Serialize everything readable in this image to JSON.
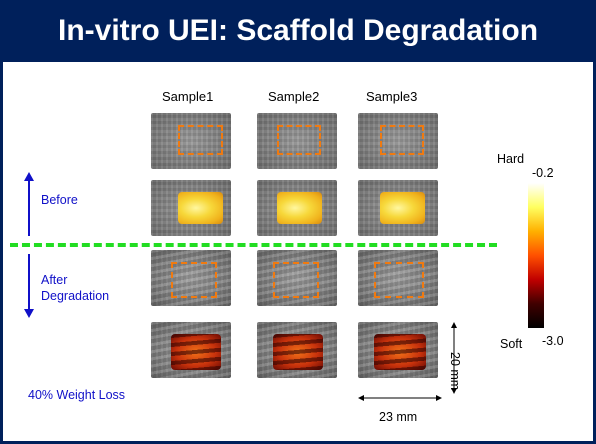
{
  "title": "In-vitro UEI: Scaffold Degradation",
  "samples": [
    "Sample1",
    "Sample2",
    "Sample3"
  ],
  "labels": {
    "before": "Before",
    "after_line1": "After",
    "after_line2": "Degradation",
    "weight_loss": "40% Weight Loss"
  },
  "colorbar": {
    "top_label": "Hard",
    "bottom_label": "Soft",
    "max_value": "-0.2",
    "min_value": "-3.0",
    "colors": [
      "#ffffff",
      "#ffff60",
      "#ffb000",
      "#ff5000",
      "#c00000",
      "#400000",
      "#000000"
    ]
  },
  "scale": {
    "height": "20 mm",
    "width": "23 mm"
  },
  "colors": {
    "title_bg": "#00205b",
    "title_text": "#ffffff",
    "dashed_box": "#f07a10",
    "separator": "#22dd22",
    "side_text": "#1010c8"
  }
}
